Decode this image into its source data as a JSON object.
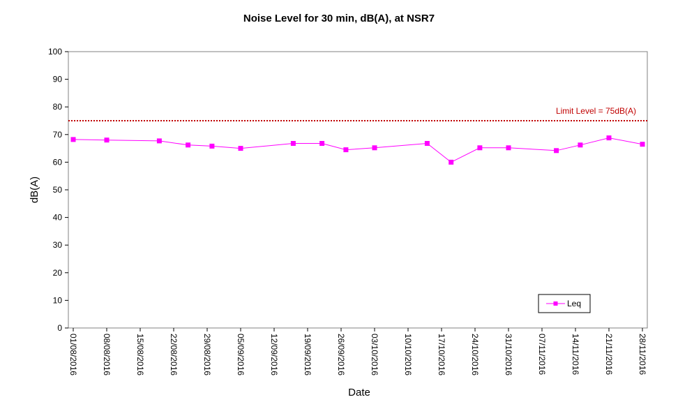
{
  "chart_data": {
    "type": "line",
    "title": "Noise Level for 30 min, dB(A), at NSR7",
    "xlabel": "Date",
    "ylabel": "dB(A)",
    "ylim": [
      0,
      100
    ],
    "yticks": [
      0,
      10,
      20,
      30,
      40,
      50,
      60,
      70,
      80,
      90,
      100
    ],
    "xlim": [
      "2016-08-01",
      "2016-11-28"
    ],
    "xtick_labels": [
      "01/08/2016",
      "08/08/2016",
      "15/08/2016",
      "22/08/2016",
      "29/08/2016",
      "05/09/2016",
      "12/09/2016",
      "19/09/2016",
      "26/09/2016",
      "03/10/2016",
      "10/10/2016",
      "17/10/2016",
      "24/10/2016",
      "31/10/2016",
      "07/11/2016",
      "14/11/2016",
      "21/11/2016",
      "28/11/2016"
    ],
    "grid": false,
    "legend_position": "bottom-right",
    "series": [
      {
        "name": "Leq",
        "color": "#ff00ff",
        "marker": "square",
        "points": [
          {
            "x": "2016-08-01",
            "y": 68.2
          },
          {
            "x": "2016-08-08",
            "y": 68.0
          },
          {
            "x": "2016-08-19",
            "y": 67.7
          },
          {
            "x": "2016-08-25",
            "y": 66.2
          },
          {
            "x": "2016-08-30",
            "y": 65.8
          },
          {
            "x": "2016-09-05",
            "y": 65.0
          },
          {
            "x": "2016-09-16",
            "y": 66.8
          },
          {
            "x": "2016-09-22",
            "y": 66.8
          },
          {
            "x": "2016-09-27",
            "y": 64.5
          },
          {
            "x": "2016-10-03",
            "y": 65.2
          },
          {
            "x": "2016-10-14",
            "y": 66.8
          },
          {
            "x": "2016-10-19",
            "y": 60.0
          },
          {
            "x": "2016-10-25",
            "y": 65.2
          },
          {
            "x": "2016-10-31",
            "y": 65.2
          },
          {
            "x": "2016-11-10",
            "y": 64.2
          },
          {
            "x": "2016-11-15",
            "y": 66.2
          },
          {
            "x": "2016-11-21",
            "y": 68.8
          },
          {
            "x": "2016-11-28",
            "y": 66.5
          }
        ]
      }
    ],
    "limit_line": {
      "label": "Limit Level = 75dB(A)",
      "value": 75,
      "color": "#c00000"
    }
  }
}
